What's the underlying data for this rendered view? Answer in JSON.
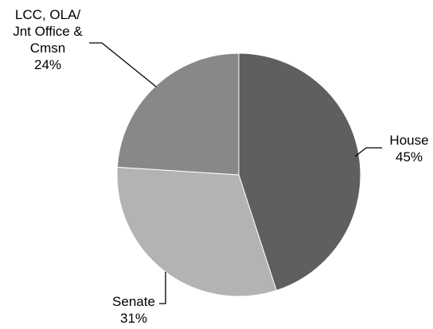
{
  "chart_data": {
    "type": "pie",
    "title": "",
    "slices": [
      {
        "label_lines": [
          "House"
        ],
        "percent_label": "45%",
        "value": 45,
        "color": "#5f5f5f"
      },
      {
        "label_lines": [
          "Senate"
        ],
        "percent_label": "31%",
        "value": 31,
        "color": "#b3b3b3"
      },
      {
        "label_lines": [
          "LCC, OLA/",
          "Jnt Office &",
          "Cmsn"
        ],
        "percent_label": "24%",
        "value": 24,
        "color": "#888888"
      }
    ],
    "start_angle": "12 o'clock",
    "direction": "clockwise",
    "legend": "none"
  }
}
